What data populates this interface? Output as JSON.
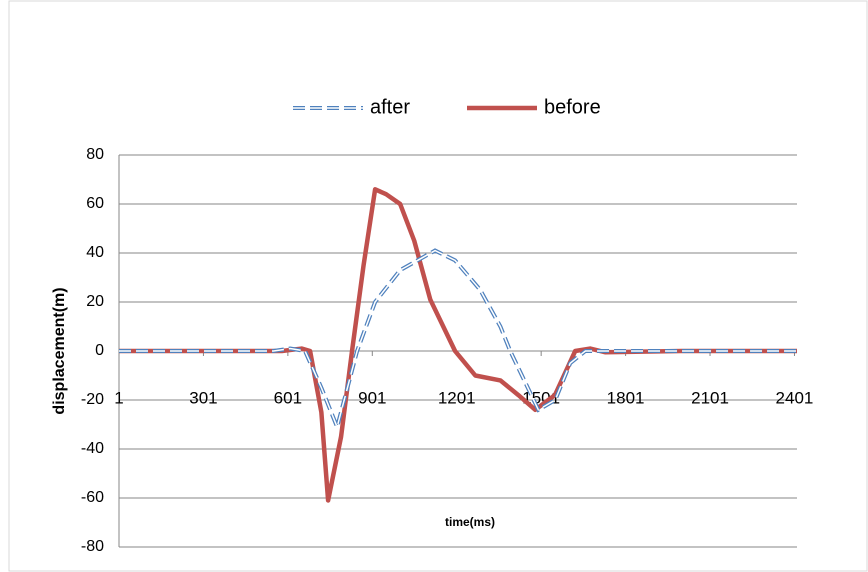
{
  "chart_data": {
    "type": "line",
    "xlabel": "time(ms)",
    "ylabel": "displacement(m)",
    "xlim": [
      1,
      2410
    ],
    "xticks": [
      1,
      301,
      601,
      901,
      1201,
      1501,
      1801,
      2101,
      2401
    ],
    "ylim": [
      -80,
      80
    ],
    "yticks": [
      -80,
      -60,
      -40,
      -20,
      0,
      20,
      40,
      60,
      80
    ],
    "grid": true,
    "legend": "top",
    "series": [
      {
        "name": "after",
        "color": "#4f81bd",
        "dashed": true,
        "x": [
          1,
          300,
          550,
          609,
          662,
          720,
          776,
          847,
          911,
          1000,
          1124,
          1195,
          1284,
          1356,
          1391,
          1491,
          1551,
          1604,
          1658,
          1750,
          2000,
          2410
        ],
        "values": [
          0,
          0,
          0,
          1,
          0,
          -15,
          -31,
          0,
          20,
          33,
          41,
          37,
          25,
          10,
          0,
          -24,
          -20,
          -5,
          0,
          0,
          0,
          0
        ]
      },
      {
        "name": "before",
        "color": "#c0504d",
        "dashed": false,
        "x": [
          1,
          300,
          580,
          650,
          680,
          720,
          744,
          790,
          829,
          870,
          911,
          950,
          1000,
          1050,
          1107,
          1195,
          1267,
          1356,
          1420,
          1480,
          1550,
          1622,
          1675,
          1728,
          2000,
          2410
        ],
        "values": [
          0,
          0,
          0,
          1,
          0,
          -25,
          -61,
          -35,
          0,
          35,
          66,
          64,
          60,
          45,
          21,
          0,
          -10,
          -12,
          -18,
          -24,
          -18,
          0,
          1,
          -0.5,
          0,
          0
        ]
      }
    ]
  }
}
